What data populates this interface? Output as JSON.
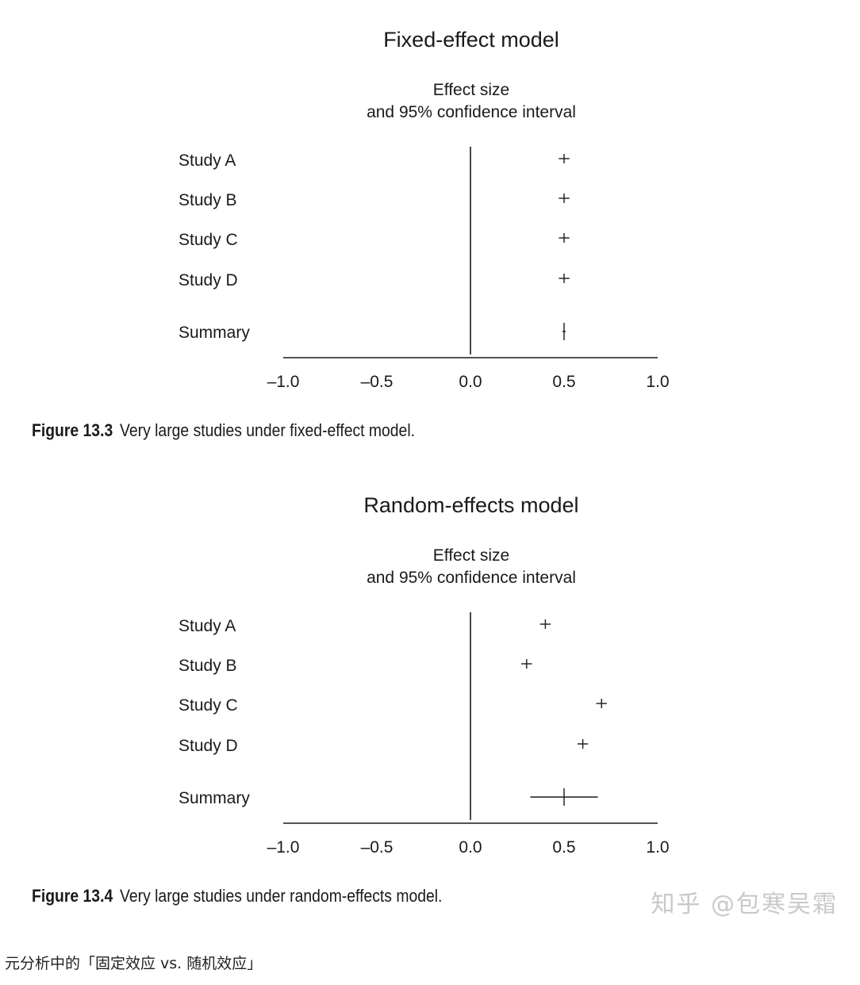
{
  "chart_data": [
    {
      "type": "forest",
      "title": "Fixed-effect model",
      "header_line1": "Effect size",
      "header_line2": "and 95% confidence interval",
      "xlim": [
        -1.0,
        1.0
      ],
      "ticks": [
        "–1.0",
        "–0.5",
        "0.0",
        "0.5",
        "1.0"
      ],
      "tick_values": [
        -1.0,
        -0.5,
        0.0,
        0.5,
        1.0
      ],
      "studies": [
        {
          "label": "Study A",
          "effect": 0.5,
          "lower": 0.48,
          "upper": 0.52
        },
        {
          "label": "Study B",
          "effect": 0.5,
          "lower": 0.48,
          "upper": 0.52
        },
        {
          "label": "Study C",
          "effect": 0.5,
          "lower": 0.48,
          "upper": 0.52
        },
        {
          "label": "Study D",
          "effect": 0.5,
          "lower": 0.48,
          "upper": 0.52
        }
      ],
      "summary": {
        "label": "Summary",
        "effect": 0.5,
        "lower": 0.5,
        "upper": 0.5
      },
      "caption_number": "Figure 13.3",
      "caption_text": "Very large studies under fixed-effect model."
    },
    {
      "type": "forest",
      "title": "Random-effects model",
      "header_line1": "Effect size",
      "header_line2": "and 95% confidence interval",
      "xlim": [
        -1.0,
        1.0
      ],
      "ticks": [
        "–1.0",
        "–0.5",
        "0.0",
        "0.5",
        "1.0"
      ],
      "tick_values": [
        -1.0,
        -0.5,
        0.0,
        0.5,
        1.0
      ],
      "studies": [
        {
          "label": "Study A",
          "effect": 0.4,
          "lower": 0.38,
          "upper": 0.42
        },
        {
          "label": "Study B",
          "effect": 0.3,
          "lower": 0.28,
          "upper": 0.32
        },
        {
          "label": "Study C",
          "effect": 0.7,
          "lower": 0.68,
          "upper": 0.72
        },
        {
          "label": "Study D",
          "effect": 0.6,
          "lower": 0.58,
          "upper": 0.62
        }
      ],
      "summary": {
        "label": "Summary",
        "effect": 0.5,
        "lower": 0.32,
        "upper": 0.68
      },
      "caption_number": "Figure 13.4",
      "caption_text": "Very large studies under random-effects model."
    }
  ],
  "watermark": "知乎 @包寒吴霜",
  "footer_caption": "元分析中的「固定效应 vs. 随机效应」"
}
